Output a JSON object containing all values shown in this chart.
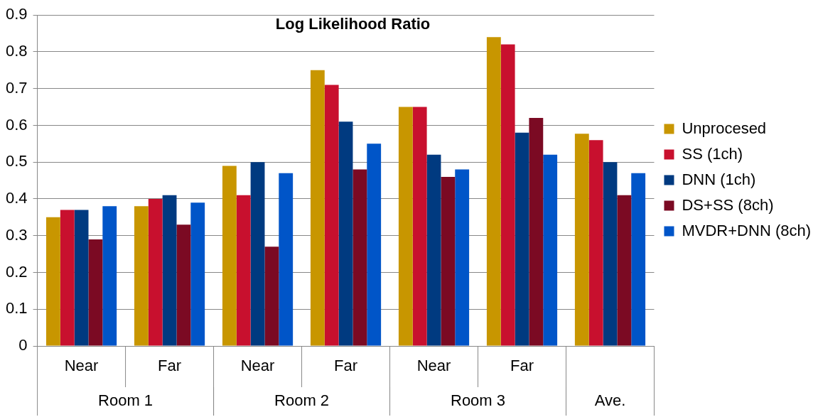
{
  "chart_data": {
    "type": "bar",
    "title": "Log Likelihood Ratio",
    "categories": [
      "Near",
      "Far",
      "Near",
      "Far",
      "Near",
      "Far",
      null
    ],
    "annotations": [
      "Room 1",
      "Room 2",
      "Room 3",
      "Ave."
    ],
    "series": [
      {
        "name": "Unprocesed",
        "color": "#c89600",
        "values": [
          0.35,
          0.38,
          0.49,
          0.75,
          0.65,
          0.84,
          0.577
        ]
      },
      {
        "name": "SS (1ch)",
        "color": "#c8102e",
        "values": [
          0.37,
          0.4,
          0.41,
          0.71,
          0.65,
          0.82,
          0.56
        ]
      },
      {
        "name": "DNN (1ch)",
        "color": "#003a80",
        "values": [
          0.37,
          0.41,
          0.5,
          0.61,
          0.52,
          0.58,
          0.5
        ]
      },
      {
        "name": "DS+SS (8ch)",
        "color": "#7b0a23",
        "values": [
          0.29,
          0.33,
          0.27,
          0.48,
          0.46,
          0.62,
          0.41
        ]
      },
      {
        "name": "MVDR+DNN (8ch)",
        "color": "#0055c8",
        "values": [
          0.38,
          0.39,
          0.47,
          0.55,
          0.48,
          0.52,
          0.47
        ]
      }
    ],
    "ylim": [
      0,
      0.9
    ],
    "yticks": [
      0,
      0.1,
      0.2,
      0.3,
      0.4,
      0.5,
      0.6,
      0.7,
      0.8,
      0.9
    ],
    "grid": "y",
    "legend": "right"
  }
}
